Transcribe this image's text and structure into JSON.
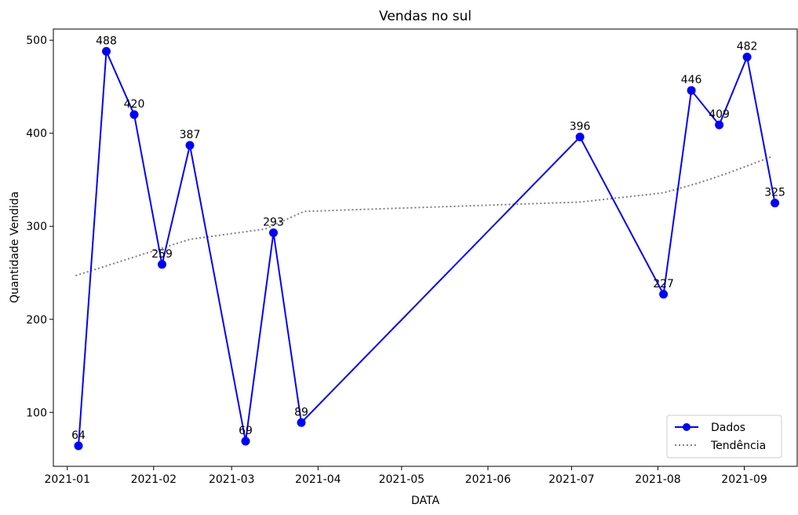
{
  "chart_data": {
    "type": "line",
    "title": "Vendas no sul",
    "xlabel": "DATA",
    "ylabel": "Quantidade Vendida",
    "x_ticks": [
      "2021-01",
      "2021-02",
      "2021-03",
      "2021-04",
      "2021-05",
      "2021-06",
      "2021-07",
      "2021-08",
      "2021-09"
    ],
    "y_ticks": [
      100,
      200,
      300,
      400,
      500
    ],
    "xlim": [
      "2020-12-27",
      "2021-09-20"
    ],
    "ylim": [
      42,
      512
    ],
    "grid": false,
    "legend_position": "lower-right",
    "series": [
      {
        "name": "Dados",
        "style": "solid line with circle markers",
        "color": "#0000ff",
        "x": [
          "2021-01-05",
          "2021-01-15",
          "2021-01-25",
          "2021-02-04",
          "2021-02-14",
          "2021-03-06",
          "2021-03-16",
          "2021-03-26",
          "2021-07-04",
          "2021-08-03",
          "2021-08-13",
          "2021-08-23",
          "2021-09-02",
          "2021-09-12"
        ],
        "values": [
          64,
          488,
          420,
          259,
          387,
          69,
          293,
          89,
          396,
          227,
          446,
          409,
          482,
          325
        ],
        "labels": [
          "64",
          "488",
          "420",
          "259",
          "387",
          "69",
          "293",
          "89",
          "396",
          "227",
          "446",
          "409",
          "482",
          "325"
        ]
      },
      {
        "name": "Tendência",
        "style": "dotted line",
        "color": "#808080",
        "x": [
          "2021-01-04",
          "2021-02-14",
          "2021-03-13",
          "2021-03-27",
          "2021-07-04",
          "2021-08-03",
          "2021-08-15",
          "2021-08-25",
          "2021-09-11"
        ],
        "values": [
          247,
          286,
          297,
          316,
          326,
          336,
          346,
          356,
          375
        ]
      }
    ]
  }
}
